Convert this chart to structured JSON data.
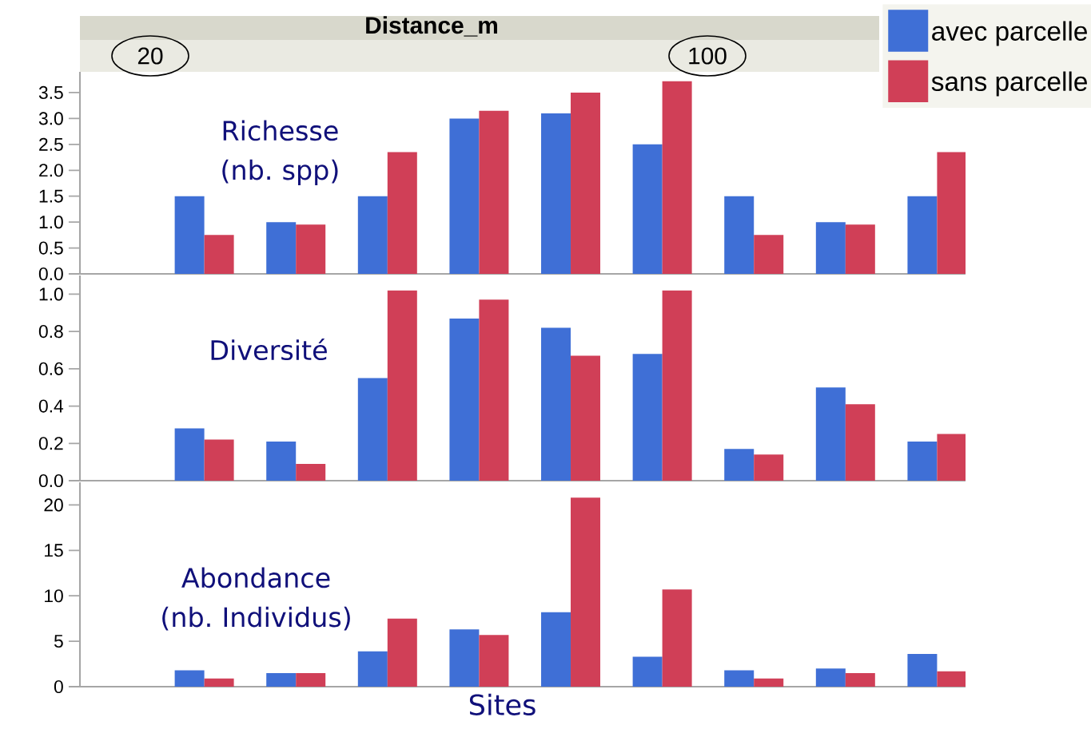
{
  "chart_data": [
    {
      "type": "bar",
      "title": "Richesse (nb. spp)",
      "categories": [
        null,
        null,
        null,
        null,
        null,
        null,
        null,
        null,
        null,
        null
      ],
      "series": [
        {
          "name": "avec parcelle",
          "color": "#3f6fd6",
          "values": [
            null,
            1.5,
            1.0,
            1.5,
            3.0,
            3.1,
            2.5,
            1.5,
            1.0,
            1.5
          ]
        },
        {
          "name": "sans parcelle",
          "color": "#d03f57",
          "values": [
            null,
            0.75,
            0.95,
            2.35,
            3.15,
            3.5,
            3.72,
            0.75,
            0.95,
            2.35
          ]
        }
      ],
      "ylim": [
        0,
        3.9
      ],
      "yticks": [
        {
          "value": 0,
          "label": "0.0"
        },
        {
          "value": 0.5,
          "label": "0.5"
        },
        {
          "value": 1,
          "label": "1.0"
        },
        {
          "value": 1.5,
          "label": "1.5"
        },
        {
          "value": 2,
          "label": "2.0"
        },
        {
          "value": 2.5,
          "label": "2.5"
        },
        {
          "value": 3,
          "label": "3.0"
        },
        {
          "value": 3.5,
          "label": "3.5"
        }
      ],
      "legend": "top right",
      "annotations": [
        "Distance_m",
        "20",
        "100"
      ]
    },
    {
      "type": "bar",
      "title": "Diversité",
      "categories": [
        null,
        null,
        null,
        null,
        null,
        null,
        null,
        null,
        null,
        null
      ],
      "series": [
        {
          "color": "#3f6fd6",
          "values": [
            null,
            0.28,
            0.21,
            0.55,
            0.87,
            0.82,
            0.68,
            0.17,
            0.5,
            0.21
          ]
        },
        {
          "color": "#d03f57",
          "values": [
            null,
            0.22,
            0.09,
            1.02,
            0.97,
            0.67,
            1.02,
            0.14,
            0.41,
            0.25
          ]
        }
      ],
      "ylim": [
        0,
        1.1
      ],
      "yticks": [
        {
          "value": 0,
          "label": "0.0"
        },
        {
          "value": 0.2,
          "label": "0.2"
        },
        {
          "value": 0.4,
          "label": "0.4"
        },
        {
          "value": 0.6,
          "label": "0.6"
        },
        {
          "value": 0.8,
          "label": "0.8"
        },
        {
          "value": 1,
          "label": "1.0"
        }
      ]
    },
    {
      "type": "bar",
      "title": "Abondance (nb. Individus)",
      "xlabel": "Sites",
      "categories": [
        null,
        null,
        null,
        null,
        null,
        null,
        null,
        null,
        null,
        null
      ],
      "series": [
        {
          "color": "#3f6fd6",
          "values": [
            null,
            1.8,
            1.5,
            3.9,
            6.3,
            8.2,
            3.3,
            1.8,
            2.0,
            3.6
          ]
        },
        {
          "color": "#d03f57",
          "values": [
            null,
            0.9,
            1.5,
            7.5,
            5.7,
            20.8,
            10.7,
            0.9,
            1.5,
            1.7
          ]
        }
      ],
      "ylim": [
        0,
        22.5
      ],
      "yticks": [
        0,
        5,
        10,
        15,
        20
      ]
    }
  ]
}
